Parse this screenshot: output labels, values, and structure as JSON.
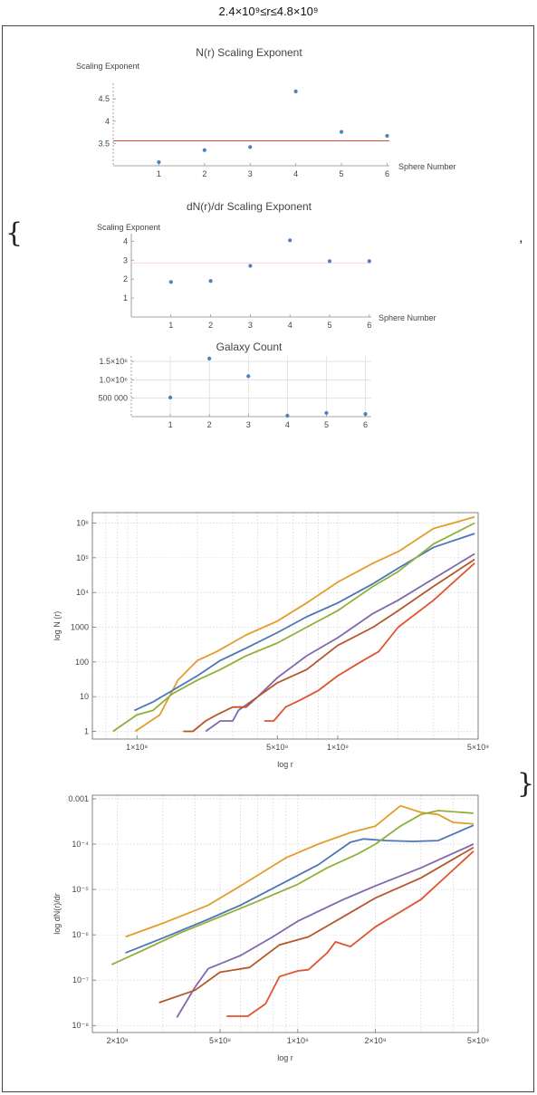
{
  "header": {
    "title": "2.4×10⁹≤r≤4.8×10⁹"
  },
  "list": {
    "open": "{",
    "close": "}",
    "separator": ","
  },
  "chart_data": [
    {
      "type": "scatter",
      "title": "N(r) Scaling Exponent",
      "ylabel": "Scaling Exponent",
      "xlabel": "Sphere Number",
      "x": [
        1,
        2,
        3,
        4,
        5,
        6
      ],
      "values": [
        3.08,
        3.35,
        3.42,
        4.67,
        3.76,
        3.67
      ],
      "xlim": [
        0,
        6.05
      ],
      "ylim": [
        3.0,
        4.85
      ],
      "yticks": [
        3.5,
        4.0,
        4.5
      ],
      "xticks": [
        1,
        2,
        3,
        4,
        5,
        6
      ],
      "reference_line": 3.56,
      "colors": {
        "points": "#4f7fc0",
        "line": "#d6453a"
      }
    },
    {
      "type": "scatter",
      "title": "dN(r)/dr Scaling Exponent",
      "ylabel": "Scaling Exponent",
      "xlabel": "Sphere Number",
      "x": [
        1,
        2,
        3,
        4,
        5,
        6
      ],
      "values": [
        1.85,
        1.9,
        2.7,
        4.05,
        2.95,
        2.95
      ],
      "xlim": [
        0,
        6.05
      ],
      "ylim": [
        0,
        4.4
      ],
      "yticks": [
        1,
        2,
        3,
        4
      ],
      "xticks": [
        1,
        2,
        3,
        4,
        5,
        6
      ],
      "reference_line": 2.85,
      "colors": {
        "points": "#4f7fc0",
        "line": "#f2d7d7"
      }
    },
    {
      "type": "scatter",
      "title": "Galaxy Count",
      "x": [
        1,
        2,
        3,
        4,
        5,
        6
      ],
      "values": [
        520000,
        1580000,
        1100000,
        25000,
        100000,
        70000
      ],
      "xlim": [
        0,
        6.15
      ],
      "ylim": [
        0,
        1650000
      ],
      "yticks": [
        500000,
        1000000,
        1500000
      ],
      "ytick_labels": [
        "500 000",
        "1.0×10⁶",
        "1.5×10⁶"
      ],
      "xticks": [
        1,
        2,
        3,
        4,
        5,
        6
      ],
      "colors": {
        "points": "#4f7fc0",
        "grid": "#d5d5d5"
      }
    },
    {
      "type": "line",
      "xscale": "log",
      "yscale": "log",
      "xlabel": "log r",
      "ylabel": "log N (r)",
      "xlim": [
        60000000,
        5000000000
      ],
      "ylim": [
        0.6,
        2000000
      ],
      "xticks": [
        100000000,
        500000000,
        1000000000,
        5000000000
      ],
      "xtick_labels": [
        "1×10⁸",
        "5×10⁸",
        "1×10⁹",
        "5×10⁹"
      ],
      "yticks": [
        1,
        10,
        100,
        1000,
        10000,
        100000,
        1000000
      ],
      "ytick_labels": [
        "1",
        "10",
        "100",
        "1000",
        "10⁴",
        "10⁵",
        "10⁶"
      ],
      "series": [
        {
          "color": "#e49d2a",
          "x": [
            98000000,
            130000000,
            160000000,
            200000000,
            250000000,
            350000000,
            500000000,
            700000000,
            1000000000,
            1500000000,
            2000000000,
            3000000000,
            4800000000
          ],
          "y": [
            1,
            3,
            30,
            110,
            200,
            600,
            1500,
            5000,
            20000,
            70000,
            150000,
            700000,
            1500000
          ]
        },
        {
          "color": "#4c76b8",
          "x": [
            97000000,
            120000000,
            150000000,
            200000000,
            260000000,
            350000000,
            500000000,
            700000000,
            1000000000,
            1500000000,
            2000000000,
            3000000000,
            4800000000
          ],
          "y": [
            4,
            7,
            15,
            40,
            110,
            250,
            700,
            2000,
            5000,
            18000,
            50000,
            200000,
            500000
          ]
        },
        {
          "color": "#8fb13a",
          "x": [
            76000000,
            100000000,
            120000000,
            150000000,
            200000000,
            260000000,
            350000000,
            500000000,
            700000000,
            1000000000,
            1500000000,
            2000000000,
            3000000000,
            4800000000
          ],
          "y": [
            1,
            3,
            4,
            12,
            30,
            60,
            150,
            350,
            1000,
            3000,
            15000,
            40000,
            250000,
            1000000
          ]
        },
        {
          "color": "#8167ad",
          "x": [
            220000000,
            260000000,
            300000000,
            320000000,
            400000000,
            500000000,
            700000000,
            1000000000,
            1500000000,
            2000000000,
            3000000000,
            4800000000
          ],
          "y": [
            1,
            2,
            2,
            4,
            10,
            35,
            150,
            500,
            2500,
            6000,
            25000,
            130000
          ]
        },
        {
          "color": "#b5572a",
          "x": [
            170000000,
            190000000,
            220000000,
            250000000,
            300000000,
            350000000,
            400000000,
            500000000,
            700000000,
            1000000000,
            1500000000,
            2000000000,
            3000000000,
            4800000000
          ],
          "y": [
            1,
            1,
            2,
            3,
            5,
            5,
            10,
            25,
            60,
            300,
            1000,
            3000,
            15000,
            90000
          ]
        },
        {
          "color": "#e2542e",
          "x": [
            430000000,
            480000000,
            550000000,
            650000000,
            800000000,
            1000000000,
            1300000000,
            1600000000,
            2000000000,
            3000000000,
            4800000000
          ],
          "y": [
            2,
            2,
            5,
            8,
            15,
            40,
            100,
            200,
            1000,
            6000,
            70000
          ]
        }
      ]
    },
    {
      "type": "line",
      "xscale": "log",
      "yscale": "log",
      "xlabel": "log r",
      "ylabel": "log dN(r)/dr",
      "xlim": [
        160000000,
        5000000000
      ],
      "ylim": [
        7e-09,
        0.0012
      ],
      "xticks": [
        200000000,
        500000000,
        1000000000,
        2000000000,
        5000000000
      ],
      "xtick_labels": [
        "2×10⁸",
        "5×10⁸",
        "1×10⁹",
        "2×10⁹",
        "5×10⁹"
      ],
      "yticks": [
        1e-08,
        1e-07,
        1e-06,
        1e-05,
        0.0001,
        0.001
      ],
      "ytick_labels": [
        "10⁻⁸",
        "10⁻⁷",
        "10⁻⁶",
        "10⁻⁵",
        "10⁻⁴",
        "0.001"
      ],
      "series": [
        {
          "color": "#e49d2a",
          "x": [
            215000000,
            300000000,
            450000000,
            600000000,
            900000000,
            1200000000,
            1600000000,
            2000000000,
            2500000000,
            3000000000,
            3500000000,
            4000000000,
            4800000000
          ],
          "y": [
            9e-07,
            1.8e-06,
            4.5e-06,
            1.2e-05,
            5e-05,
            0.0001,
            0.00018,
            0.00025,
            0.0007,
            0.0005,
            0.00045,
            0.0003,
            0.00028
          ]
        },
        {
          "color": "#4c76b8",
          "x": [
            215000000,
            300000000,
            450000000,
            600000000,
            900000000,
            1200000000,
            1600000000,
            1800000000,
            2200000000,
            2800000000,
            3500000000,
            4800000000
          ],
          "y": [
            4e-07,
            8.5e-07,
            2.2e-06,
            4.5e-06,
            1.5e-05,
            3.5e-05,
            0.00011,
            0.00013,
            0.00012,
            0.000115,
            0.00012,
            0.00026
          ]
        },
        {
          "color": "#8fb13a",
          "x": [
            190000000,
            250000000,
            350000000,
            500000000,
            700000000,
            1000000000,
            1300000000,
            1700000000,
            2000000000,
            2500000000,
            3000000000,
            3500000000,
            4800000000
          ],
          "y": [
            2.2e-07,
            4.5e-07,
            1.1e-06,
            2.5e-06,
            5.5e-06,
            1.3e-05,
            3e-05,
            6e-05,
            0.0001,
            0.00025,
            0.00045,
            0.00055,
            0.00048
          ]
        },
        {
          "color": "#8167ad",
          "x": [
            340000000,
            400000000,
            450000000,
            600000000,
            800000000,
            1000000000,
            1500000000,
            2000000000,
            3000000000,
            4800000000
          ],
          "y": [
            1.5e-08,
            7e-08,
            1.8e-07,
            3.5e-07,
            9e-07,
            2e-06,
            6e-06,
            1.2e-05,
            3e-05,
            0.0001
          ]
        },
        {
          "color": "#b5572a",
          "x": [
            290000000,
            400000000,
            500000000,
            650000000,
            850000000,
            1100000000,
            1500000000,
            2000000000,
            3000000000,
            4800000000
          ],
          "y": [
            3.2e-08,
            6e-08,
            1.5e-07,
            1.9e-07,
            6e-07,
            9e-07,
            2.5e-06,
            6.5e-06,
            1.8e-05,
            8.5e-05
          ]
        },
        {
          "color": "#e2542e",
          "x": [
            530000000,
            640000000,
            750000000,
            850000000,
            1000000000,
            1100000000,
            1300000000,
            1400000000,
            1600000000,
            2000000000,
            3000000000,
            4800000000
          ],
          "y": [
            1.6e-08,
            1.6e-08,
            3e-08,
            1.2e-07,
            1.6e-07,
            1.7e-07,
            4e-07,
            7e-07,
            5.5e-07,
            1.5e-06,
            6e-06,
            7e-05
          ]
        }
      ]
    }
  ]
}
